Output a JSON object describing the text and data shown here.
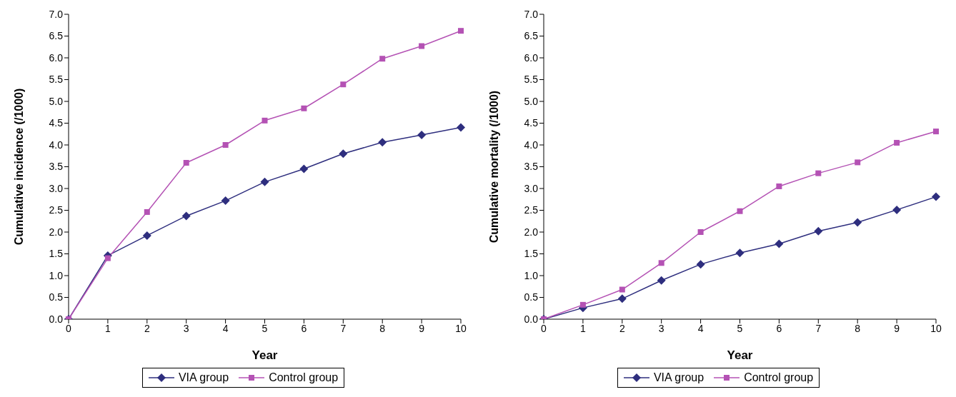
{
  "chart_data": [
    {
      "type": "line",
      "xlabel": "Year",
      "ylabel": "Cumulative incidence (/1000)",
      "categories": [
        "0",
        "1",
        "2",
        "3",
        "4",
        "5",
        "6",
        "7",
        "8",
        "9",
        "10"
      ],
      "ylim": [
        0,
        7
      ],
      "yticks": [
        {
          "value": 0,
          "label": "0.0"
        },
        {
          "value": 0.5,
          "label": "0.5"
        },
        {
          "value": 1,
          "label": "1.0"
        },
        {
          "value": 1.5,
          "label": "1.5"
        },
        {
          "value": 2,
          "label": "2.0"
        },
        {
          "value": 2.5,
          "label": "2.5"
        },
        {
          "value": 3,
          "label": "3.0"
        },
        {
          "value": 3.5,
          "label": "3.5"
        },
        {
          "value": 4,
          "label": "4.0"
        },
        {
          "value": 4.5,
          "label": "4.5"
        },
        {
          "value": 5,
          "label": "5.0"
        },
        {
          "value": 5.5,
          "label": "5.5"
        },
        {
          "value": 6,
          "label": "6.0"
        },
        {
          "value": 6.5,
          "label": "6.5"
        },
        {
          "value": 7,
          "label": "7.0"
        }
      ],
      "grid": false,
      "legend": "bottom",
      "series": [
        {
          "name": "VIA group",
          "color": "#2e2e7e",
          "marker": "diamond",
          "values": [
            0,
            1.46,
            1.92,
            2.37,
            2.72,
            3.15,
            3.45,
            3.8,
            4.06,
            4.23,
            4.4
          ]
        },
        {
          "name": "Control group",
          "color": "#b452b4",
          "marker": "square",
          "values": [
            0,
            1.4,
            2.46,
            3.59,
            4.0,
            4.56,
            4.84,
            5.39,
            5.98,
            6.27,
            6.62
          ]
        }
      ]
    },
    {
      "type": "line",
      "xlabel": "Year",
      "ylabel": "Cumulative mortality (/1000)",
      "categories": [
        "0",
        "1",
        "2",
        "3",
        "4",
        "5",
        "6",
        "7",
        "8",
        "9",
        "10"
      ],
      "ylim": [
        0,
        7
      ],
      "yticks": [
        {
          "value": 0,
          "label": "0.0"
        },
        {
          "value": 0.5,
          "label": "0.5"
        },
        {
          "value": 1,
          "label": "1.0"
        },
        {
          "value": 1.5,
          "label": "1.5"
        },
        {
          "value": 2,
          "label": "2.0"
        },
        {
          "value": 2.5,
          "label": "2.5"
        },
        {
          "value": 3,
          "label": "3.0"
        },
        {
          "value": 3.5,
          "label": "3.5"
        },
        {
          "value": 4,
          "label": "4.0"
        },
        {
          "value": 4.5,
          "label": "4.5"
        },
        {
          "value": 5,
          "label": "5.0"
        },
        {
          "value": 5.5,
          "label": "5.5"
        },
        {
          "value": 6,
          "label": "6.0"
        },
        {
          "value": 6.5,
          "label": "6.5"
        },
        {
          "value": 7,
          "label": "7.0"
        }
      ],
      "grid": false,
      "legend": "bottom",
      "series": [
        {
          "name": "VIA group",
          "color": "#2e2e7e",
          "marker": "diamond",
          "values": [
            0,
            0.26,
            0.47,
            0.89,
            1.26,
            1.52,
            1.73,
            2.02,
            2.22,
            2.51,
            2.81
          ]
        },
        {
          "name": "Control group",
          "color": "#b452b4",
          "marker": "square",
          "values": [
            0,
            0.33,
            0.68,
            1.29,
            2.0,
            2.48,
            3.05,
            3.35,
            3.6,
            4.05,
            4.31
          ]
        }
      ]
    }
  ]
}
